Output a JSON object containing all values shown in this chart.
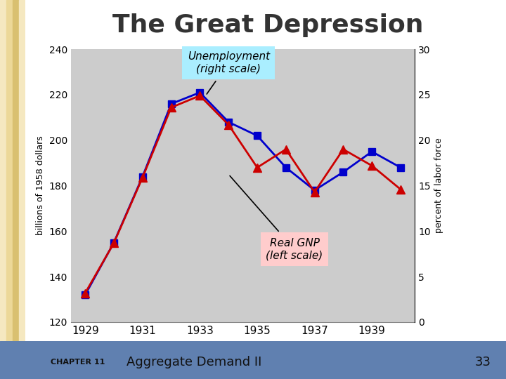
{
  "years": [
    1929,
    1930,
    1931,
    1932,
    1933,
    1934,
    1935,
    1936,
    1937,
    1938,
    1939,
    1940
  ],
  "real_gnp": [
    132,
    155,
    184,
    216,
    221,
    208,
    202,
    188,
    178,
    186,
    195,
    188
  ],
  "unemployment": [
    3.2,
    8.7,
    15.9,
    23.6,
    24.9,
    21.7,
    17.0,
    19.0,
    14.3,
    19.0,
    17.2,
    14.6
  ],
  "gnp_ylim": [
    120,
    240
  ],
  "unemp_ylim": [
    0,
    30
  ],
  "gnp_yticks": [
    120,
    140,
    160,
    180,
    200,
    220,
    240
  ],
  "unemp_yticks": [
    0,
    5,
    10,
    15,
    20,
    25,
    30
  ],
  "xticks": [
    1929,
    1931,
    1933,
    1935,
    1937,
    1939
  ],
  "xlim": [
    1928.5,
    1940.5
  ],
  "gnp_color": "#0000CC",
  "unemp_color": "#CC0000",
  "plot_bg": "#CCCCCC",
  "title": "The Great Depression",
  "title_color": "#333333",
  "title_fontsize": 26,
  "ylabel_left": "billions of 1958 dollars",
  "ylabel_right": "percent of labor force",
  "annot_unemp_text": "Unemployment\n(right scale)",
  "annot_gnp_text": "Real GNP\n(left scale)",
  "annot_unemp_box_color": "#AAEEFF",
  "annot_gnp_box_color": "#FFCCCC",
  "chapter_label": "CHAPTER 11",
  "slide_title": "Aggregate Demand II",
  "page_num": "33",
  "footer_bg": "#6080B0",
  "left_strip_colors": [
    "#F5E8C0",
    "#ECD898",
    "#D9C070",
    "#F5E8C0"
  ]
}
